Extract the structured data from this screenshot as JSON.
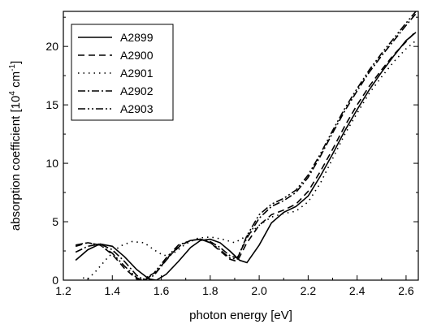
{
  "chart_data": {
    "type": "line",
    "title": "",
    "xlabel": "photon energy [eV]",
    "ylabel": "absorption coefficient [10",
    "ylabel_sup1": "4",
    "ylabel_mid": " cm",
    "ylabel_sup2": "-1",
    "ylabel_end": "]",
    "xlim": [
      1.2,
      2.65
    ],
    "ylim": [
      0,
      23
    ],
    "xticks": [
      1.2,
      1.4,
      1.6,
      1.8,
      2.0,
      2.2,
      2.4,
      2.6
    ],
    "xtick_labels": [
      "1.2",
      "1.4",
      "1.6",
      "1.8",
      "2.0",
      "2.2",
      "2.4",
      "2.6"
    ],
    "yticks": [
      0,
      5,
      10,
      15,
      20
    ],
    "ytick_labels": [
      "0",
      "5",
      "10",
      "15",
      "20"
    ],
    "grid": false,
    "legend_position": "top-left",
    "series": [
      {
        "name": "A2899",
        "dash": "",
        "points": [
          [
            1.25,
            1.7
          ],
          [
            1.3,
            2.6
          ],
          [
            1.35,
            3.1
          ],
          [
            1.4,
            2.9
          ],
          [
            1.45,
            2.0
          ],
          [
            1.5,
            0.9
          ],
          [
            1.55,
            0.1
          ],
          [
            1.58,
            0.0
          ],
          [
            1.62,
            0.5
          ],
          [
            1.67,
            1.6
          ],
          [
            1.72,
            2.8
          ],
          [
            1.76,
            3.4
          ],
          [
            1.8,
            3.5
          ],
          [
            1.84,
            3.2
          ],
          [
            1.88,
            2.5
          ],
          [
            1.92,
            1.7
          ],
          [
            1.95,
            1.5
          ],
          [
            2.0,
            3.0
          ],
          [
            2.05,
            4.9
          ],
          [
            2.1,
            5.8
          ],
          [
            2.15,
            6.3
          ],
          [
            2.2,
            7.2
          ],
          [
            2.25,
            8.9
          ],
          [
            2.3,
            10.8
          ],
          [
            2.35,
            12.8
          ],
          [
            2.4,
            14.6
          ],
          [
            2.45,
            16.3
          ],
          [
            2.5,
            17.8
          ],
          [
            2.55,
            19.2
          ],
          [
            2.6,
            20.5
          ],
          [
            2.64,
            21.2
          ]
        ]
      },
      {
        "name": "A2900",
        "dash": "8,5",
        "points": [
          [
            1.25,
            2.9
          ],
          [
            1.3,
            3.2
          ],
          [
            1.35,
            3.0
          ],
          [
            1.4,
            2.2
          ],
          [
            1.45,
            1.0
          ],
          [
            1.5,
            0.1
          ],
          [
            1.53,
            0.0
          ],
          [
            1.58,
            0.7
          ],
          [
            1.63,
            2.0
          ],
          [
            1.68,
            3.0
          ],
          [
            1.72,
            3.4
          ],
          [
            1.76,
            3.5
          ],
          [
            1.8,
            3.2
          ],
          [
            1.84,
            2.5
          ],
          [
            1.88,
            1.8
          ],
          [
            1.91,
            1.6
          ],
          [
            1.95,
            3.2
          ],
          [
            2.0,
            4.7
          ],
          [
            2.05,
            5.6
          ],
          [
            2.1,
            6.0
          ],
          [
            2.15,
            6.5
          ],
          [
            2.2,
            7.6
          ],
          [
            2.25,
            9.3
          ],
          [
            2.3,
            11.2
          ],
          [
            2.35,
            13.2
          ],
          [
            2.4,
            15.0
          ],
          [
            2.45,
            16.6
          ],
          [
            2.5,
            18.0
          ],
          [
            2.55,
            19.3
          ],
          [
            2.6,
            20.4
          ],
          [
            2.64,
            21.3
          ]
        ]
      },
      {
        "name": "A2901",
        "dash": "1.5,5",
        "points": [
          [
            1.28,
            0.2
          ],
          [
            1.3,
            0.1
          ],
          [
            1.33,
            0.7
          ],
          [
            1.38,
            1.9
          ],
          [
            1.43,
            2.9
          ],
          [
            1.48,
            3.3
          ],
          [
            1.53,
            3.2
          ],
          [
            1.57,
            2.6
          ],
          [
            1.61,
            2.1
          ],
          [
            1.65,
            2.3
          ],
          [
            1.7,
            3.1
          ],
          [
            1.75,
            3.6
          ],
          [
            1.8,
            3.7
          ],
          [
            1.85,
            3.5
          ],
          [
            1.9,
            3.2
          ],
          [
            1.95,
            3.8
          ],
          [
            2.0,
            4.7
          ],
          [
            2.05,
            5.4
          ],
          [
            2.1,
            5.7
          ],
          [
            2.15,
            5.9
          ],
          [
            2.2,
            6.7
          ],
          [
            2.25,
            8.3
          ],
          [
            2.3,
            10.4
          ],
          [
            2.35,
            12.5
          ],
          [
            2.4,
            14.3
          ],
          [
            2.45,
            16.0
          ],
          [
            2.5,
            17.4
          ],
          [
            2.55,
            18.7
          ],
          [
            2.6,
            19.8
          ],
          [
            2.64,
            20.5
          ]
        ]
      },
      {
        "name": "A2902",
        "dash": "9,3,2,3",
        "points": [
          [
            1.25,
            2.4
          ],
          [
            1.3,
            2.9
          ],
          [
            1.35,
            3.1
          ],
          [
            1.4,
            2.6
          ],
          [
            1.45,
            1.6
          ],
          [
            1.5,
            0.4
          ],
          [
            1.53,
            0.0
          ],
          [
            1.57,
            0.4
          ],
          [
            1.62,
            1.7
          ],
          [
            1.67,
            2.9
          ],
          [
            1.72,
            3.4
          ],
          [
            1.76,
            3.5
          ],
          [
            1.8,
            3.3
          ],
          [
            1.84,
            2.8
          ],
          [
            1.88,
            2.1
          ],
          [
            1.91,
            1.9
          ],
          [
            1.95,
            3.6
          ],
          [
            2.0,
            5.3
          ],
          [
            2.05,
            6.3
          ],
          [
            2.1,
            6.8
          ],
          [
            2.15,
            7.5
          ],
          [
            2.2,
            8.8
          ],
          [
            2.25,
            10.6
          ],
          [
            2.3,
            12.6
          ],
          [
            2.35,
            14.5
          ],
          [
            2.4,
            16.2
          ],
          [
            2.45,
            17.8
          ],
          [
            2.5,
            19.2
          ],
          [
            2.55,
            20.5
          ],
          [
            2.6,
            21.8
          ],
          [
            2.64,
            22.8
          ]
        ]
      },
      {
        "name": "A2903",
        "dash": "9,3,2,3,2,3",
        "points": [
          [
            1.25,
            3.0
          ],
          [
            1.3,
            3.2
          ],
          [
            1.35,
            3.0
          ],
          [
            1.4,
            2.3
          ],
          [
            1.45,
            1.2
          ],
          [
            1.5,
            0.2
          ],
          [
            1.52,
            0.0
          ],
          [
            1.57,
            0.6
          ],
          [
            1.62,
            1.9
          ],
          [
            1.67,
            3.0
          ],
          [
            1.72,
            3.4
          ],
          [
            1.76,
            3.5
          ],
          [
            1.8,
            3.2
          ],
          [
            1.84,
            2.6
          ],
          [
            1.88,
            1.9
          ],
          [
            1.91,
            1.8
          ],
          [
            1.95,
            3.8
          ],
          [
            2.0,
            5.6
          ],
          [
            2.05,
            6.5
          ],
          [
            2.1,
            7.0
          ],
          [
            2.15,
            7.7
          ],
          [
            2.2,
            9.0
          ],
          [
            2.25,
            10.8
          ],
          [
            2.3,
            12.8
          ],
          [
            2.35,
            14.7
          ],
          [
            2.4,
            16.4
          ],
          [
            2.45,
            18.0
          ],
          [
            2.5,
            19.4
          ],
          [
            2.55,
            20.7
          ],
          [
            2.6,
            22.0
          ],
          [
            2.64,
            23.0
          ]
        ]
      }
    ]
  }
}
